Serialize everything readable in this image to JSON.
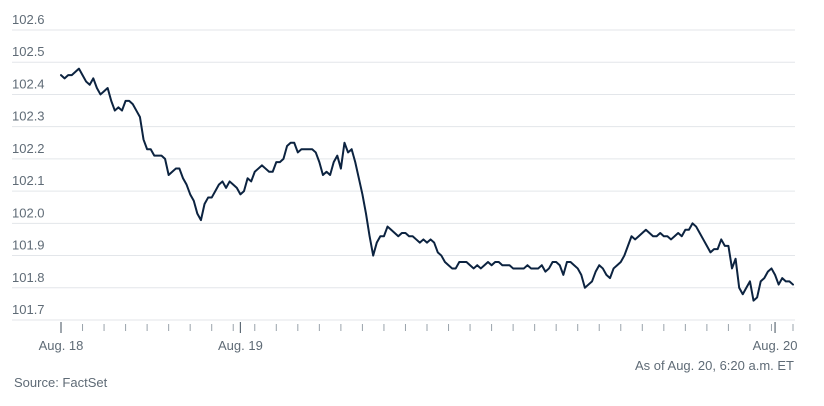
{
  "chart_data": {
    "type": "line",
    "title": "",
    "xlabel": "",
    "ylabel": "",
    "ylim": [
      101.7,
      102.6
    ],
    "yticks": [
      102.6,
      102.5,
      102.4,
      102.3,
      102.2,
      102.1,
      102.0,
      101.9,
      101.8,
      101.7
    ],
    "ytick_labels": [
      "102.6",
      "102.5",
      "102.4",
      "102.3",
      "102.2",
      "102.1",
      "102.0",
      "101.9",
      "101.8",
      "101.7"
    ],
    "xtick_labels": [
      "Aug. 18",
      "Aug. 19",
      "Aug. 20"
    ],
    "xtick_positions": [
      0,
      50,
      199
    ],
    "grid": "horizontal",
    "line_color": "#0c2340",
    "series": [
      {
        "values": [
          102.46,
          102.45,
          102.46,
          102.46,
          102.47,
          102.48,
          102.46,
          102.44,
          102.43,
          102.45,
          102.42,
          102.4,
          102.41,
          102.42,
          102.38,
          102.35,
          102.36,
          102.35,
          102.38,
          102.38,
          102.37,
          102.35,
          102.33,
          102.26,
          102.23,
          102.23,
          102.21,
          102.21,
          102.21,
          102.2,
          102.15,
          102.16,
          102.17,
          102.17,
          102.14,
          102.12,
          102.09,
          102.07,
          102.03,
          102.01,
          102.06,
          102.08,
          102.08,
          102.1,
          102.12,
          102.13,
          102.11,
          102.13,
          102.12,
          102.11,
          102.09,
          102.1,
          102.14,
          102.13,
          102.16,
          102.17,
          102.18,
          102.17,
          102.16,
          102.16,
          102.19,
          102.19,
          102.2,
          102.24,
          102.25,
          102.25,
          102.22,
          102.23,
          102.23,
          102.23,
          102.23,
          102.22,
          102.19,
          102.15,
          102.16,
          102.15,
          102.19,
          102.21,
          102.17,
          102.25,
          102.22,
          102.23,
          102.19,
          102.14,
          102.09,
          102.03,
          101.96,
          101.9,
          101.94,
          101.96,
          101.96,
          101.99,
          101.98,
          101.97,
          101.96,
          101.97,
          101.97,
          101.96,
          101.96,
          101.95,
          101.94,
          101.95,
          101.94,
          101.95,
          101.94,
          101.91,
          101.9,
          101.88,
          101.87,
          101.86,
          101.86,
          101.88,
          101.88,
          101.88,
          101.87,
          101.86,
          101.87,
          101.86,
          101.87,
          101.88,
          101.87,
          101.88,
          101.88,
          101.87,
          101.87,
          101.87,
          101.86,
          101.86,
          101.86,
          101.86,
          101.87,
          101.86,
          101.86,
          101.86,
          101.87,
          101.85,
          101.86,
          101.88,
          101.88,
          101.87,
          101.84,
          101.88,
          101.88,
          101.87,
          101.86,
          101.84,
          101.8,
          101.81,
          101.82,
          101.85,
          101.87,
          101.86,
          101.84,
          101.83,
          101.86,
          101.87,
          101.88,
          101.9,
          101.93,
          101.96,
          101.95,
          101.96,
          101.97,
          101.98,
          101.97,
          101.96,
          101.96,
          101.97,
          101.96,
          101.96,
          101.95,
          101.96,
          101.97,
          101.96,
          101.98,
          101.98,
          102.0,
          101.99,
          101.97,
          101.95,
          101.93,
          101.91,
          101.92,
          101.92,
          101.95,
          101.93,
          101.93,
          101.86,
          101.89,
          101.8,
          101.78,
          101.8,
          101.82,
          101.76,
          101.77,
          101.82,
          101.83,
          101.85,
          101.86,
          101.84,
          101.81,
          101.83,
          101.82,
          101.82,
          101.81
        ]
      }
    ]
  },
  "footer": {
    "as_of": "As of Aug. 20, 6:20 a.m. ET",
    "source": "Source: FactSet"
  }
}
